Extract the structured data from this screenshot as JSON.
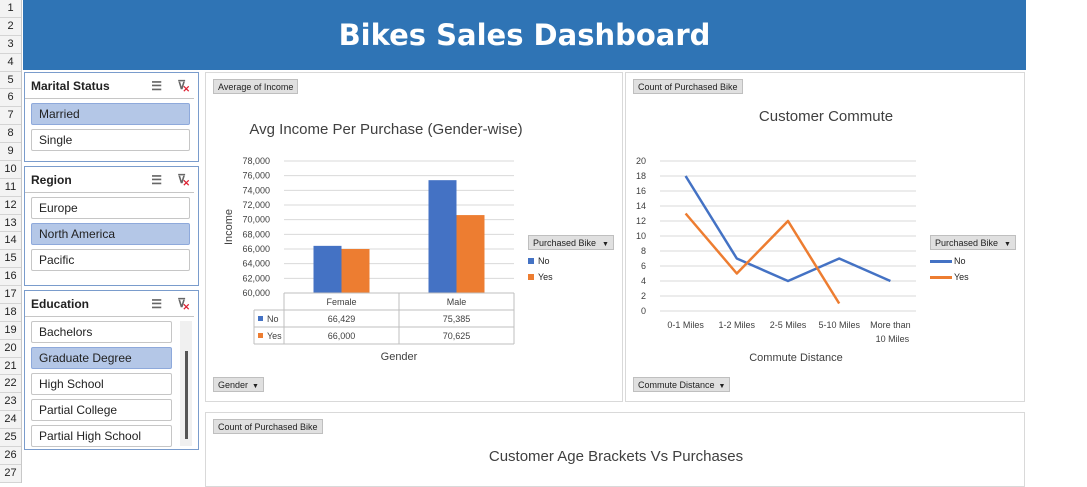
{
  "row_numbers": [
    "1",
    "2",
    "3",
    "4",
    "5",
    "6",
    "7",
    "8",
    "9",
    "10",
    "11",
    "12",
    "13",
    "14",
    "15",
    "16",
    "17",
    "18",
    "19",
    "20",
    "21",
    "22",
    "23",
    "24",
    "25",
    "26",
    "27"
  ],
  "title": "Bikes Sales Dashboard",
  "colors": {
    "banner": "#2f74b5",
    "no": "#4472c4",
    "yes": "#ed7d31",
    "selected": "#b4c7e7"
  },
  "slicers": {
    "marital": {
      "title": "Marital Status",
      "items": [
        {
          "label": "Married",
          "selected": true
        },
        {
          "label": "Single",
          "selected": false
        }
      ]
    },
    "region": {
      "title": "Region",
      "items": [
        {
          "label": "Europe",
          "selected": false
        },
        {
          "label": "North America",
          "selected": true
        },
        {
          "label": "Pacific",
          "selected": false
        }
      ]
    },
    "education": {
      "title": "Education",
      "items": [
        {
          "label": "Bachelors",
          "selected": false
        },
        {
          "label": "Graduate Degree",
          "selected": true
        },
        {
          "label": "High School",
          "selected": false
        },
        {
          "label": "Partial College",
          "selected": false
        },
        {
          "label": "Partial High School",
          "selected": false
        }
      ]
    }
  },
  "income_panel": {
    "value_button": "Average of Income",
    "axis_button": "Gender",
    "legend_button": "Purchased Bike",
    "legend_no": "No",
    "legend_yes": "Yes"
  },
  "commute_panel": {
    "value_button": "Count of Purchased Bike",
    "axis_button": "Commute Distance",
    "legend_button": "Purchased Bike",
    "legend_no": "No",
    "legend_yes": "Yes"
  },
  "age_panel": {
    "value_button": "Count of Purchased Bike",
    "title": "Customer Age Brackets Vs Purchases"
  },
  "chart_data": [
    {
      "type": "bar",
      "title": "Avg Income Per Purchase (Gender-wise)",
      "xlabel": "Gender",
      "ylabel": "Income",
      "categories": [
        "Female",
        "Male"
      ],
      "series": [
        {
          "name": "No",
          "values": [
            66429,
            75385
          ],
          "labels": [
            "66,429",
            "75,385"
          ]
        },
        {
          "name": "Yes",
          "values": [
            66000,
            70625
          ],
          "labels": [
            "66,000",
            "70,625"
          ]
        }
      ],
      "ylim": [
        60000,
        78000
      ],
      "yticks": [
        "60,000",
        "62,000",
        "64,000",
        "66,000",
        "68,000",
        "70,000",
        "72,000",
        "74,000",
        "76,000",
        "78,000"
      ],
      "grid": true,
      "data_table": true,
      "legend": "right"
    },
    {
      "type": "line",
      "title": "Customer Commute",
      "xlabel": "Commute Distance",
      "categories": [
        "0-1 Miles",
        "1-2 Miles",
        "2-5 Miles",
        "5-10 Miles",
        "More than 10 Miles"
      ],
      "series": [
        {
          "name": "No",
          "values": [
            18,
            7,
            4,
            7,
            4
          ]
        },
        {
          "name": "Yes",
          "values": [
            13,
            5,
            12,
            1,
            null
          ]
        }
      ],
      "ylim": [
        0,
        20
      ],
      "yticks": [
        "0",
        "2",
        "4",
        "6",
        "8",
        "10",
        "12",
        "14",
        "16",
        "18",
        "20"
      ],
      "grid": true,
      "legend": "right"
    }
  ]
}
